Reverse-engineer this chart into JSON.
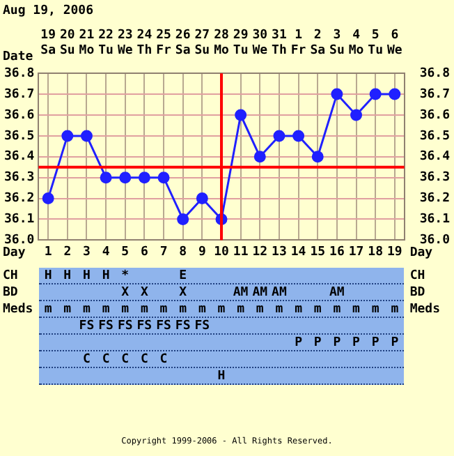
{
  "chart_data": [
    {
      "type": "line",
      "annotations": [
        "Aug 19, 2006",
        "Copyright 1999-2006 - All Rights Reserved."
      ],
      "xlabel": "Day",
      "x2label": "Date",
      "x": [
        1,
        2,
        3,
        4,
        5,
        6,
        7,
        8,
        9,
        10,
        11,
        12,
        13,
        14,
        15,
        16,
        17,
        18,
        19
      ],
      "series": [
        {
          "color": "#2020ff",
          "values": [
            36.2,
            36.5,
            36.5,
            36.3,
            36.3,
            36.3,
            36.3,
            36.1,
            36.2,
            36.1,
            36.6,
            36.4,
            36.5,
            36.5,
            36.4,
            36.7,
            36.6,
            36.7,
            36.7
          ]
        }
      ],
      "xlim": [
        0.5,
        19.5
      ],
      "xticks": [
        1,
        2,
        3,
        4,
        5,
        6,
        7,
        8,
        9,
        10,
        11,
        12,
        13,
        14,
        15,
        16,
        17,
        18,
        19
      ],
      "x2lim": [
        "--08-18T12:00",
        "--09-06T12:00"
      ],
      "x2ticks": [
        {
          "value": "--08-19",
          "label": "19 Sa"
        },
        {
          "value": "--08-20",
          "label": "20 Su"
        },
        {
          "value": "--08-21",
          "label": "21 Mo"
        },
        {
          "value": "--08-22",
          "label": "22 Tu"
        },
        {
          "value": "--08-23",
          "label": "23 We"
        },
        {
          "value": "--08-24",
          "label": "24 Th"
        },
        {
          "value": "--08-25",
          "label": "25 Fr"
        },
        {
          "value": "--08-26",
          "label": "26 Sa"
        },
        {
          "value": "--08-27",
          "label": "27 Su"
        },
        {
          "value": "--08-28",
          "label": "28 Mo"
        },
        {
          "value": "--08-29",
          "label": "29 Tu"
        },
        {
          "value": "--08-30",
          "label": "30 We"
        },
        {
          "value": "--08-31",
          "label": "31 Th"
        },
        {
          "value": "--09-01",
          "label": "1 Fr"
        },
        {
          "value": "--09-02",
          "label": "2 Sa"
        },
        {
          "value": "--09-03",
          "label": "3 Su"
        },
        {
          "value": "--09-04",
          "label": "4 Mo"
        },
        {
          "value": "--09-05",
          "label": "5 Tu"
        },
        {
          "value": "--09-06",
          "label": "6 We"
        }
      ],
      "ylim": [
        36.0,
        36.8
      ],
      "yticks": [
        {
          "value": 36.0,
          "label": "36.0"
        },
        36.1,
        36.2,
        36.3,
        36.4,
        36.5,
        36.6,
        36.7,
        36.8
      ],
      "y2lim": [
        36.0,
        36.8
      ],
      "y2ticks": [
        {
          "value": 36.0,
          "label": "36.0"
        },
        36.1,
        36.2,
        36.3,
        36.4,
        36.5,
        36.6,
        36.7,
        36.8
      ],
      "ref_lines": [
        {
          "axis": "x",
          "value": 10,
          "color": "#ff0000"
        },
        {
          "axis": "y",
          "value": 36.35,
          "color": "#ff0000"
        }
      ],
      "grid": true,
      "marker": "circle",
      "line_style": "solid"
    },
    {
      "type": "heatmap",
      "categories": [
        null,
        null,
        null,
        null,
        null,
        null,
        null,
        null,
        null,
        null,
        null,
        null,
        null,
        null,
        null,
        null,
        null,
        null,
        null
      ],
      "y_categories": [
        "CH",
        "BD",
        "Meds",
        null,
        null,
        null,
        null
      ],
      "y2_categories": [
        "CH",
        "BD",
        "Meds",
        null,
        null,
        null,
        null
      ],
      "cells": [
        [
          "H",
          "H",
          "H",
          "H",
          "*",
          null,
          null,
          "E",
          null,
          null,
          null,
          null,
          null,
          null,
          null,
          null,
          null,
          null,
          null
        ],
        [
          null,
          null,
          null,
          null,
          "X",
          "X",
          null,
          "X",
          null,
          null,
          "AM",
          "AM",
          "AM",
          null,
          null,
          "AM",
          null,
          null,
          null
        ],
        [
          "m",
          "m",
          "m",
          "m",
          "m",
          "m",
          "m",
          "m",
          "m",
          "m",
          "m",
          "m",
          "m",
          "m",
          "m",
          "m",
          "m",
          "m",
          "m"
        ],
        [
          null,
          null,
          "FS",
          "FS",
          "FS",
          "FS",
          "FS",
          "FS",
          "FS",
          null,
          null,
          null,
          null,
          null,
          null,
          null,
          null,
          null,
          null
        ],
        [
          null,
          null,
          null,
          null,
          null,
          null,
          null,
          null,
          null,
          null,
          null,
          null,
          null,
          "P",
          "P",
          "P",
          "P",
          "P",
          "P"
        ],
        [
          null,
          null,
          "C",
          "C",
          "C",
          "C",
          "C",
          null,
          null,
          null,
          null,
          null,
          null,
          null,
          null,
          null,
          null,
          null,
          null
        ],
        [
          null,
          null,
          null,
          null,
          null,
          null,
          null,
          null,
          null,
          "H",
          null,
          null,
          null,
          null,
          null,
          null,
          null,
          null,
          null
        ]
      ]
    }
  ]
}
